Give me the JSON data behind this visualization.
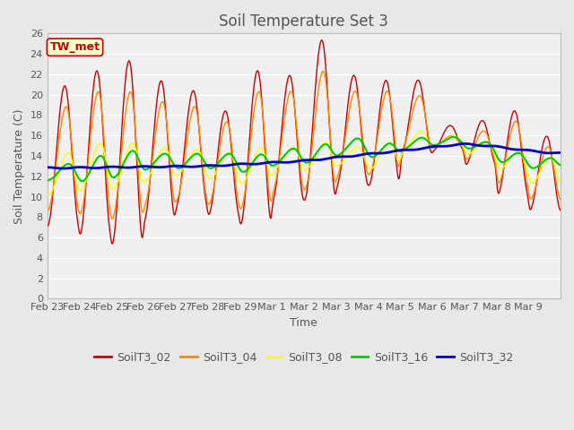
{
  "title": "Soil Temperature Set 3",
  "xlabel": "Time",
  "ylabel": "Soil Temperature (C)",
  "ylim": [
    0,
    26
  ],
  "yticks": [
    0,
    2,
    4,
    6,
    8,
    10,
    12,
    14,
    16,
    18,
    20,
    22,
    24,
    26
  ],
  "annotation_text": "TW_met",
  "annotation_color": "#cc0000",
  "annotation_bg": "#ffffcc",
  "annotation_border": "#cc0000",
  "series_colors": {
    "SoilT3_02": "#cc0000",
    "SoilT3_04": "#ff8800",
    "SoilT3_08": "#ffff00",
    "SoilT3_16": "#00cc00",
    "SoilT3_32": "#0000cc"
  },
  "series_lw": {
    "SoilT3_02": 1.0,
    "SoilT3_04": 1.0,
    "SoilT3_08": 1.0,
    "SoilT3_16": 1.5,
    "SoilT3_32": 2.0
  },
  "x_tick_labels": [
    "Feb 23",
    "Feb 24",
    "Feb 25",
    "Feb 26",
    "Feb 27",
    "Feb 28",
    "Feb 29",
    "Mar 1",
    "Mar 2",
    "Mar 3",
    "Mar 4",
    "Mar 5",
    "Mar 6",
    "Mar 7",
    "Mar 8",
    "Mar 9"
  ],
  "bg_color": "#e8e8e8",
  "plot_bg_color": "#f0f0f0",
  "grid_color": "#ffffff",
  "font_color": "#555555",
  "title_fontsize": 12,
  "label_fontsize": 9,
  "tick_fontsize": 8,
  "legend_fontsize": 9
}
